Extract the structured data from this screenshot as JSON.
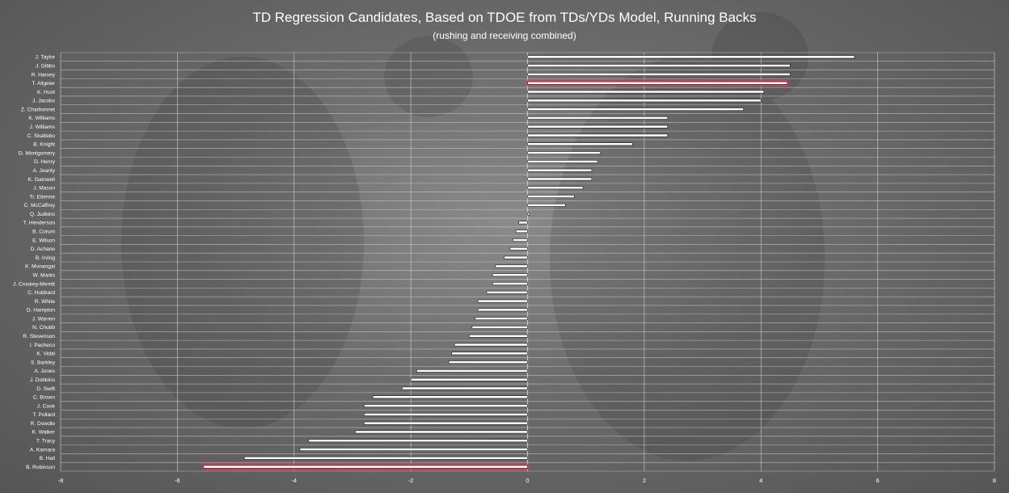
{
  "chart_data": {
    "type": "bar",
    "orientation": "horizontal",
    "title": "TD Regression Candidates, Based on TDOE from TDs/YDs Model, Running Backs",
    "subtitle": "(rushing and receiving combined)",
    "xlabel": "",
    "ylabel": "",
    "xlim": [
      -8,
      8
    ],
    "xticks": [
      -8,
      -6,
      -4,
      -2,
      0,
      2,
      4,
      6,
      8
    ],
    "grid": true,
    "legend": "none",
    "categories": [
      "J. Taylor",
      "J. Gibbs",
      "R. Harvey",
      "T. Allgeier",
      "K. Hunt",
      "J. Jacobs",
      "Z. Charbonnet",
      "K. Williams",
      "J. Williams",
      "C. Skattebo",
      "B. Knight",
      "D. Montgomery",
      "D. Henry",
      "A. Jeanty",
      "K. Gainwell",
      "J. Mason",
      "Tr. Etienne",
      "C. McCaffrey",
      "Q. Judkins",
      "T. Henderson",
      "B. Corum",
      "E. Wilson",
      "D. Achane",
      "B. Irving",
      "K. Monangai",
      "W. Marks",
      "J. Croskey-Merritt",
      "C. Hubbard",
      "R. White",
      "O. Hampton",
      "J. Warren",
      "N. Chubb",
      "R. Stevenson",
      "I. Pacheco",
      "K. Vidal",
      "S. Barkley",
      "A. Jones",
      "J. Dobbins",
      "D. Swift",
      "C. Brown",
      "J. Cook",
      "T. Pollard",
      "R. Dowdle",
      "K. Walker",
      "T. Tracy",
      "A. Kamara",
      "B. Hall",
      "B. Robinson"
    ],
    "values": [
      5.6,
      4.5,
      4.5,
      4.45,
      4.05,
      4.0,
      3.7,
      2.4,
      2.4,
      2.4,
      1.8,
      1.25,
      1.2,
      1.1,
      1.1,
      0.95,
      0.8,
      0.65,
      0.03,
      -0.15,
      -0.2,
      -0.25,
      -0.3,
      -0.4,
      -0.55,
      -0.6,
      -0.6,
      -0.7,
      -0.85,
      -0.85,
      -0.9,
      -0.95,
      -1.0,
      -1.25,
      -1.3,
      -1.35,
      -1.9,
      -2.0,
      -2.15,
      -2.65,
      -2.8,
      -2.8,
      -2.8,
      -2.95,
      -3.75,
      -3.9,
      -4.85,
      -5.55
    ],
    "highlighted": [
      "T. Allgeier",
      "B. Robinson"
    ],
    "colors": {
      "bar_fill": "#ffffff",
      "bar_outline": "#1a1a1a",
      "highlight_glow": "#e0405a",
      "gridline": "#d8d8d8",
      "background": "#666666"
    }
  }
}
